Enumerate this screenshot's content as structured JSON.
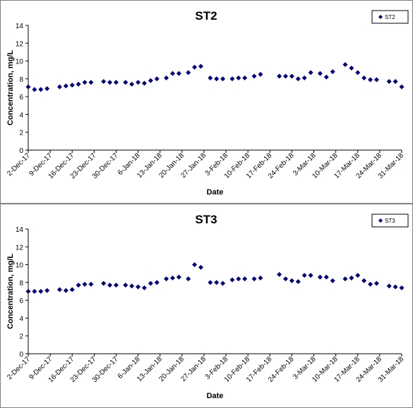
{
  "chart_data": [
    {
      "type": "scatter",
      "title": "ST2",
      "x_label": "Date",
      "y_label": "Concentration, mg/L",
      "x": [
        "2017-12-02",
        "2017-12-04",
        "2017-12-06",
        "2017-12-08",
        "2017-12-12",
        "2017-12-14",
        "2017-12-16",
        "2017-12-18",
        "2017-12-20",
        "2017-12-22",
        "2017-12-26",
        "2017-12-28",
        "2017-12-30",
        "2018-01-02",
        "2018-01-04",
        "2018-01-06",
        "2018-01-08",
        "2018-01-10",
        "2018-01-12",
        "2018-01-15",
        "2018-01-17",
        "2018-01-19",
        "2018-01-22",
        "2018-01-24",
        "2018-01-26",
        "2018-01-29",
        "2018-01-31",
        "2018-02-02",
        "2018-02-05",
        "2018-02-07",
        "2018-02-09",
        "2018-02-12",
        "2018-02-14",
        "2018-02-20",
        "2018-02-22",
        "2018-02-24",
        "2018-02-26",
        "2018-02-28",
        "2018-03-02",
        "2018-03-05",
        "2018-03-07",
        "2018-03-09",
        "2018-03-13",
        "2018-03-15",
        "2018-03-17",
        "2018-03-19",
        "2018-03-21",
        "2018-03-23",
        "2018-03-27",
        "2018-03-29",
        "2018-03-31"
      ],
      "series": [
        {
          "name": "ST2",
          "color": "#000080",
          "values": [
            7.1,
            6.8,
            6.8,
            6.9,
            7.1,
            7.2,
            7.3,
            7.4,
            7.6,
            7.6,
            7.7,
            7.6,
            7.6,
            7.6,
            7.4,
            7.6,
            7.5,
            7.8,
            8.0,
            8.1,
            8.6,
            8.6,
            8.7,
            9.3,
            9.4,
            8.1,
            8.0,
            8.0,
            8.0,
            8.1,
            8.1,
            8.3,
            8.5,
            8.3,
            8.3,
            8.3,
            8.0,
            8.1,
            8.7,
            8.6,
            8.2,
            8.8,
            9.6,
            9.2,
            8.7,
            8.1,
            7.9,
            7.9,
            7.7,
            7.7,
            7.1
          ]
        }
      ],
      "xlim": [
        "2017-12-02",
        "2018-03-31"
      ],
      "xticks": [
        {
          "value": "2017-12-02",
          "label": "2-Dec-17"
        },
        {
          "value": "2017-12-09",
          "label": "9-Dec-17"
        },
        {
          "value": "2017-12-16",
          "label": "16-Dec-17"
        },
        {
          "value": "2017-12-23",
          "label": "23-Dec-17"
        },
        {
          "value": "2017-12-30",
          "label": "30-Dec-17"
        },
        {
          "value": "2018-01-06",
          "label": "6-Jan-18"
        },
        {
          "value": "2018-01-13",
          "label": "13-Jan-18"
        },
        {
          "value": "2018-01-20",
          "label": "20-Jan-18"
        },
        {
          "value": "2018-01-27",
          "label": "27-Jan-18"
        },
        {
          "value": "2018-02-03",
          "label": "3-Feb-18"
        },
        {
          "value": "2018-02-10",
          "label": "10-Feb-18"
        },
        {
          "value": "2018-02-17",
          "label": "17-Feb-18"
        },
        {
          "value": "2018-02-24",
          "label": "24-Feb-18"
        },
        {
          "value": "2018-03-03",
          "label": "3-Mar-18"
        },
        {
          "value": "2018-03-10",
          "label": "10-Mar-18"
        },
        {
          "value": "2018-03-17",
          "label": "17-Mar-18"
        },
        {
          "value": "2018-03-24",
          "label": "24-Mar-18"
        },
        {
          "value": "2018-03-31",
          "label": "31-Mar-18"
        }
      ],
      "ylim": [
        0,
        14
      ],
      "yticks": [
        0,
        2,
        4,
        6,
        8,
        10,
        12,
        14
      ],
      "legend": "upper right",
      "marker": "diamond"
    },
    {
      "type": "scatter",
      "title": "ST3",
      "x_label": "Date",
      "y_label": "Concentration, mg/L",
      "x": [
        "2017-12-02",
        "2017-12-04",
        "2017-12-06",
        "2017-12-08",
        "2017-12-12",
        "2017-12-14",
        "2017-12-16",
        "2017-12-18",
        "2017-12-20",
        "2017-12-22",
        "2017-12-26",
        "2017-12-28",
        "2017-12-30",
        "2018-01-02",
        "2018-01-04",
        "2018-01-06",
        "2018-01-08",
        "2018-01-10",
        "2018-01-12",
        "2018-01-15",
        "2018-01-17",
        "2018-01-19",
        "2018-01-22",
        "2018-01-24",
        "2018-01-26",
        "2018-01-29",
        "2018-01-31",
        "2018-02-02",
        "2018-02-05",
        "2018-02-07",
        "2018-02-09",
        "2018-02-12",
        "2018-02-14",
        "2018-02-20",
        "2018-02-22",
        "2018-02-24",
        "2018-02-26",
        "2018-02-28",
        "2018-03-02",
        "2018-03-05",
        "2018-03-07",
        "2018-03-09",
        "2018-03-13",
        "2018-03-15",
        "2018-03-17",
        "2018-03-19",
        "2018-03-21",
        "2018-03-23",
        "2018-03-27",
        "2018-03-29",
        "2018-03-31"
      ],
      "series": [
        {
          "name": "ST3",
          "color": "#000080",
          "values": [
            7.0,
            7.0,
            7.0,
            7.1,
            7.2,
            7.1,
            7.2,
            7.7,
            7.8,
            7.8,
            7.9,
            7.7,
            7.7,
            7.7,
            7.6,
            7.5,
            7.4,
            7.9,
            8.0,
            8.4,
            8.5,
            8.6,
            8.4,
            10.0,
            9.7,
            8.0,
            8.0,
            7.9,
            8.3,
            8.4,
            8.4,
            8.4,
            8.5,
            8.9,
            8.4,
            8.2,
            8.1,
            8.8,
            8.8,
            8.6,
            8.6,
            8.2,
            8.4,
            8.5,
            8.8,
            8.2,
            7.8,
            7.9,
            7.6,
            7.5,
            7.4
          ]
        }
      ],
      "xlim": [
        "2017-12-02",
        "2018-03-31"
      ],
      "xticks": [
        {
          "value": "2017-12-02",
          "label": "2-Dec-17"
        },
        {
          "value": "2017-12-09",
          "label": "9-Dec-17"
        },
        {
          "value": "2017-12-16",
          "label": "16-Dec-17"
        },
        {
          "value": "2017-12-23",
          "label": "23-Dec-17"
        },
        {
          "value": "2017-12-30",
          "label": "30-Dec-17"
        },
        {
          "value": "2018-01-06",
          "label": "6-Jan-18"
        },
        {
          "value": "2018-01-13",
          "label": "13-Jan-18"
        },
        {
          "value": "2018-01-20",
          "label": "20-Jan-18"
        },
        {
          "value": "2018-01-27",
          "label": "27-Jan-18"
        },
        {
          "value": "2018-02-03",
          "label": "3-Feb-18"
        },
        {
          "value": "2018-02-10",
          "label": "10-Feb-18"
        },
        {
          "value": "2018-02-17",
          "label": "17-Feb-18"
        },
        {
          "value": "2018-02-24",
          "label": "24-Feb-18"
        },
        {
          "value": "2018-03-03",
          "label": "3-Mar-18"
        },
        {
          "value": "2018-03-10",
          "label": "10-Mar-18"
        },
        {
          "value": "2018-03-17",
          "label": "17-Mar-18"
        },
        {
          "value": "2018-03-24",
          "label": "24-Mar-18"
        },
        {
          "value": "2018-03-31",
          "label": "31-Mar-18"
        }
      ],
      "ylim": [
        0,
        14
      ],
      "yticks": [
        0,
        2,
        4,
        6,
        8,
        10,
        12,
        14
      ],
      "legend": "upper right",
      "marker": "diamond"
    }
  ]
}
